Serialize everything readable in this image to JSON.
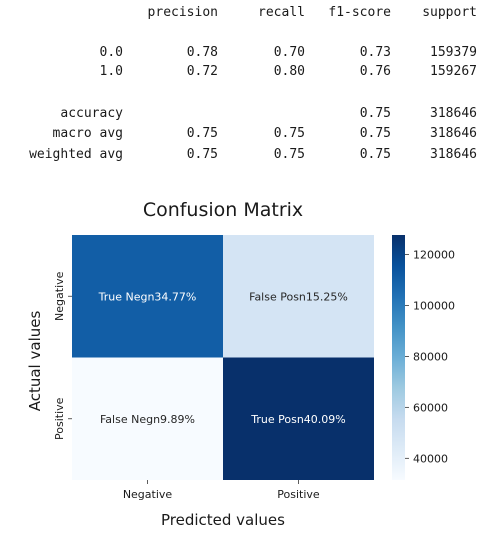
{
  "report": {
    "headers": [
      "precision",
      "recall",
      "f1-score",
      "support"
    ],
    "rows": [
      {
        "label": "0.0",
        "precision": "0.78",
        "recall": "0.70",
        "f1": "0.73",
        "support": "159379"
      },
      {
        "label": "1.0",
        "precision": "0.72",
        "recall": "0.80",
        "f1": "0.76",
        "support": "159267"
      },
      {
        "label": "accuracy",
        "precision": "",
        "recall": "",
        "f1": "0.75",
        "support": "318646"
      },
      {
        "label": "macro avg",
        "precision": "0.75",
        "recall": "0.75",
        "f1": "0.75",
        "support": "318646"
      },
      {
        "label": "weighted avg",
        "precision": "0.75",
        "recall": "0.75",
        "f1": "0.75",
        "support": "318646"
      }
    ]
  },
  "chart_data": {
    "type": "heatmap",
    "title": "Confusion Matrix",
    "xlabel": "Predicted values",
    "ylabel": "Actual values",
    "x_categories": [
      "Negative",
      "Positive"
    ],
    "y_categories": [
      "Negative",
      "Positive"
    ],
    "values": [
      [
        110700,
        48550
      ],
      [
        31490,
        127650
      ]
    ],
    "annotations": [
      [
        "True Negn34.77%",
        "False Posn15.25%"
      ],
      [
        "False Negn9.89%",
        "True Posn40.09%"
      ]
    ],
    "colormap": "Blues",
    "vmin": 31490,
    "vmax": 127650,
    "colorbar_ticks": [
      40000,
      60000,
      80000,
      100000,
      120000
    ],
    "colorbar_tick_labels": [
      "40000",
      "60000",
      "80000",
      "100000",
      "120000"
    ]
  }
}
